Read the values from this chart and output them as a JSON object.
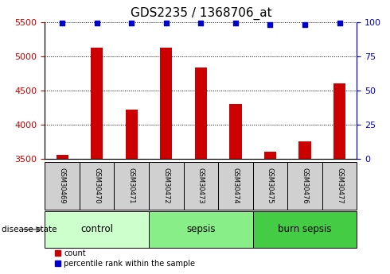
{
  "title": "GDS2235 / 1368706_at",
  "samples": [
    "GSM30469",
    "GSM30470",
    "GSM30471",
    "GSM30472",
    "GSM30473",
    "GSM30474",
    "GSM30475",
    "GSM30476",
    "GSM30477"
  ],
  "counts": [
    3560,
    5120,
    4220,
    5130,
    4830,
    4300,
    3610,
    3760,
    4600
  ],
  "percentiles": [
    99,
    99,
    99,
    99,
    99,
    99,
    98,
    98,
    99
  ],
  "ylim_left": [
    3500,
    5500
  ],
  "ylim_right": [
    0,
    100
  ],
  "yticks_left": [
    3500,
    4000,
    4500,
    5000,
    5500
  ],
  "yticks_right": [
    0,
    25,
    50,
    75,
    100
  ],
  "bar_color": "#cc0000",
  "scatter_color": "#0000cc",
  "groups": [
    {
      "label": "control",
      "start": 0,
      "end": 3,
      "color": "#ccffcc"
    },
    {
      "label": "sepsis",
      "start": 3,
      "end": 6,
      "color": "#88ee88"
    },
    {
      "label": "burn sepsis",
      "start": 6,
      "end": 9,
      "color": "#44cc44"
    }
  ],
  "sample_box_color": "#d0d0d0",
  "legend_count_label": "count",
  "legend_pct_label": "percentile rank within the sample",
  "disease_state_label": "disease state",
  "title_fontsize": 11,
  "tick_fontsize": 8,
  "sample_fontsize": 6,
  "group_fontsize": 8.5
}
